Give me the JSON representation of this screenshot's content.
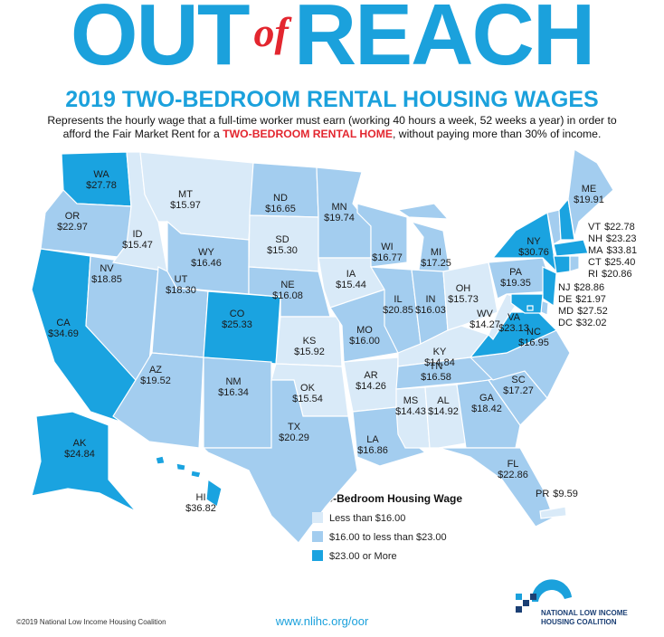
{
  "header": {
    "title_parts": [
      "OUT",
      "of",
      "REACH"
    ],
    "heading": "2019 TWO-BEDROOM RENTAL HOUSING WAGES",
    "description": {
      "line1": "Represents the hourly wage that a full-time worker must earn (working 40 hours a week, 52 weeks a year) in order to",
      "line2_before": "afford the Fair Market Rent for a ",
      "line2_highlight": "TWO-BEDROOM RENTAL HOME",
      "line2_after": ", without paying more than 30% of income."
    }
  },
  "map": {
    "states": [
      {
        "abbr": "WA",
        "wage": "$27.78",
        "color": "#1aa3e0"
      },
      {
        "abbr": "OR",
        "wage": "$22.97",
        "color": "#a3cdef"
      },
      {
        "abbr": "CA",
        "wage": "$34.69",
        "color": "#1aa3e0"
      },
      {
        "abbr": "NV",
        "wage": "$18.85",
        "color": "#a3cdef"
      },
      {
        "abbr": "ID",
        "wage": "$15.47",
        "color": "#d9eaf8"
      },
      {
        "abbr": "MT",
        "wage": "$15.97",
        "color": "#d9eaf8"
      },
      {
        "abbr": "WY",
        "wage": "$16.46",
        "color": "#a3cdef"
      },
      {
        "abbr": "UT",
        "wage": "$18.30",
        "color": "#a3cdef"
      },
      {
        "abbr": "CO",
        "wage": "$25.33",
        "color": "#1aa3e0"
      },
      {
        "abbr": "AZ",
        "wage": "$19.52",
        "color": "#a3cdef"
      },
      {
        "abbr": "NM",
        "wage": "$16.34",
        "color": "#a3cdef"
      },
      {
        "abbr": "ND",
        "wage": "$16.65",
        "color": "#a3cdef"
      },
      {
        "abbr": "SD",
        "wage": "$15.30",
        "color": "#d9eaf8"
      },
      {
        "abbr": "NE",
        "wage": "$16.08",
        "color": "#a3cdef"
      },
      {
        "abbr": "KS",
        "wage": "$15.92",
        "color": "#d9eaf8"
      },
      {
        "abbr": "OK",
        "wage": "$15.54",
        "color": "#d9eaf8"
      },
      {
        "abbr": "TX",
        "wage": "$20.29",
        "color": "#a3cdef"
      },
      {
        "abbr": "MN",
        "wage": "$19.74",
        "color": "#a3cdef"
      },
      {
        "abbr": "IA",
        "wage": "$15.44",
        "color": "#d9eaf8"
      },
      {
        "abbr": "MO",
        "wage": "$16.00",
        "color": "#a3cdef"
      },
      {
        "abbr": "AR",
        "wage": "$14.26",
        "color": "#d9eaf8"
      },
      {
        "abbr": "LA",
        "wage": "$16.86",
        "color": "#a3cdef"
      },
      {
        "abbr": "WI",
        "wage": "$16.77",
        "color": "#a3cdef"
      },
      {
        "abbr": "MI",
        "wage": "$17.25",
        "color": "#a3cdef"
      },
      {
        "abbr": "IL",
        "wage": "$20.85",
        "color": "#a3cdef"
      },
      {
        "abbr": "IN",
        "wage": "$16.03",
        "color": "#a3cdef"
      },
      {
        "abbr": "OH",
        "wage": "$15.73",
        "color": "#d9eaf8"
      },
      {
        "abbr": "KY",
        "wage": "$14.84",
        "color": "#d9eaf8"
      },
      {
        "abbr": "TN",
        "wage": "$16.58",
        "color": "#a3cdef"
      },
      {
        "abbr": "MS",
        "wage": "$14.43",
        "color": "#d9eaf8"
      },
      {
        "abbr": "AL",
        "wage": "$14.92",
        "color": "#d9eaf8"
      },
      {
        "abbr": "GA",
        "wage": "$18.42",
        "color": "#a3cdef"
      },
      {
        "abbr": "FL",
        "wage": "$22.86",
        "color": "#a3cdef"
      },
      {
        "abbr": "SC",
        "wage": "$17.27",
        "color": "#a3cdef"
      },
      {
        "abbr": "NC",
        "wage": "$16.95",
        "color": "#a3cdef"
      },
      {
        "abbr": "VA",
        "wage": "$23.13",
        "color": "#1aa3e0"
      },
      {
        "abbr": "WV",
        "wage": "$14.27",
        "color": "#d9eaf8"
      },
      {
        "abbr": "PA",
        "wage": "$19.35",
        "color": "#a3cdef"
      },
      {
        "abbr": "NY",
        "wage": "$30.76",
        "color": "#1aa3e0"
      },
      {
        "abbr": "VT",
        "wage": "$22.78",
        "color": "#a3cdef"
      },
      {
        "abbr": "NH",
        "wage": "$23.23",
        "color": "#1aa3e0"
      },
      {
        "abbr": "ME",
        "wage": "$19.91",
        "color": "#a3cdef"
      },
      {
        "abbr": "MA",
        "wage": "$33.81",
        "color": "#1aa3e0"
      },
      {
        "abbr": "CT",
        "wage": "$25.40",
        "color": "#1aa3e0"
      },
      {
        "abbr": "RI",
        "wage": "$20.86",
        "color": "#a3cdef"
      },
      {
        "abbr": "NJ",
        "wage": "$28.86",
        "color": "#1aa3e0"
      },
      {
        "abbr": "DE",
        "wage": "$21.97",
        "color": "#a3cdef"
      },
      {
        "abbr": "MD",
        "wage": "$27.52",
        "color": "#1aa3e0"
      },
      {
        "abbr": "DC",
        "wage": "$32.02",
        "color": "#1aa3e0"
      },
      {
        "abbr": "AK",
        "wage": "$24.84",
        "color": "#1aa3e0"
      },
      {
        "abbr": "HI",
        "wage": "$36.82",
        "color": "#1aa3e0"
      },
      {
        "abbr": "PR",
        "wage": "$9.59",
        "color": "#d9eaf8"
      }
    ]
  },
  "legend": {
    "title": "Two-Bedroom Housing Wage",
    "items": [
      {
        "label": "Less than $16.00",
        "color": "#d9eaf8"
      },
      {
        "label": "$16.00 to less than $23.00",
        "color": "#a3cdef"
      },
      {
        "label": "$23.00 or More",
        "color": "#1aa3e0"
      }
    ]
  },
  "footer": {
    "copyright": "©2019 National Low Income Housing Coalition",
    "url": "www.nlihc.org/oor",
    "logo_lines": [
      "NATIONAL LOW INCOME",
      "HOUSING COALITION"
    ]
  }
}
